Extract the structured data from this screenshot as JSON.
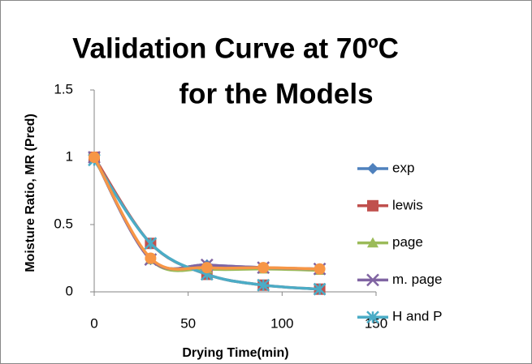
{
  "chart_data": {
    "type": "line",
    "title": [
      "Validation Curve at 70ºC",
      "for the Models"
    ],
    "x_label": "Drying Time(min)",
    "y_label": "Moisture Ratio, MR (Pred)",
    "x": [
      0,
      30,
      60,
      90,
      120
    ],
    "series": [
      {
        "name": "exp",
        "color": "#4f81bd",
        "marker": "diamond",
        "values": [
          1,
          0.24,
          0.2,
          0.18,
          0.17
        ]
      },
      {
        "name": "lewis",
        "color": "#c0504d",
        "marker": "square",
        "values": [
          1,
          0.36,
          0.13,
          0.05,
          0.02
        ]
      },
      {
        "name": "page",
        "color": "#9bbb59",
        "marker": "triangle",
        "values": [
          1,
          0.24,
          0.17,
          0.17,
          0.16
        ]
      },
      {
        "name": "m. page",
        "color": "#8064a2",
        "marker": "cross",
        "values": [
          1,
          0.24,
          0.2,
          0.18,
          0.17
        ]
      },
      {
        "name": "H and P",
        "color": "#4bacc6",
        "marker": "star",
        "values": [
          0.98,
          0.36,
          0.13,
          0.05,
          0.02
        ]
      },
      {
        "color": "#f79646",
        "marker": "circle",
        "values": [
          1,
          0.25,
          0.18,
          0.18,
          0.17
        ]
      }
    ],
    "xlim": [
      0,
      150
    ],
    "xticks": [
      0,
      50,
      100,
      150
    ],
    "ylim": [
      0,
      1.5
    ],
    "yticks": [
      0,
      0.5,
      1,
      1.5
    ],
    "smooth": true
  }
}
